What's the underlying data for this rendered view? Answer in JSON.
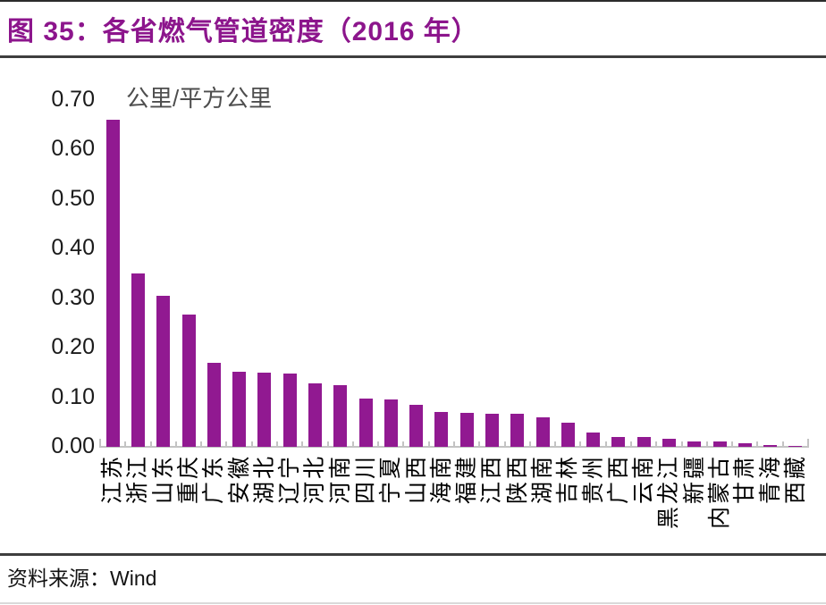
{
  "header": {
    "title": "图 35：各省燃气管道密度（2016 年）"
  },
  "footer": {
    "source_label": "资料来源：",
    "source_name": "Wind"
  },
  "colors": {
    "bar": "#911991",
    "title": "#8c158c",
    "axis": "#c3c3c3",
    "unit_label_text": "#4d4d4d",
    "ytick_text": "#1a1a1a",
    "xlabel_text": "#000000",
    "divider": "#3e3e3e"
  },
  "chart_data": {
    "type": "bar",
    "title": "图 35：各省燃气管道密度（2016 年）",
    "unit_label": "公里/平方公里",
    "ylabel": "公里/平方公里",
    "xlabel": "",
    "categories": [
      "江苏",
      "浙江",
      "山东",
      "重庆",
      "广东",
      "安徽",
      "湖北",
      "辽宁",
      "河北",
      "河南",
      "四川",
      "宁夏",
      "山西",
      "海南",
      "福建",
      "江西",
      "陕西",
      "湖南",
      "吉林",
      "贵州",
      "广西",
      "云南",
      "黑龙江",
      "新疆",
      "内蒙古",
      "甘肃",
      "青海",
      "西藏"
    ],
    "values": [
      0.66,
      0.35,
      0.305,
      0.267,
      0.17,
      0.152,
      0.149,
      0.148,
      0.128,
      0.124,
      0.097,
      0.095,
      0.085,
      0.071,
      0.068,
      0.067,
      0.066,
      0.059,
      0.048,
      0.028,
      0.02,
      0.019,
      0.017,
      0.011,
      0.011,
      0.008,
      0.003,
      0.001
    ],
    "ylim": [
      0.0,
      0.7
    ],
    "yticks": [
      0.0,
      0.1,
      0.2,
      0.3,
      0.4,
      0.5,
      0.6,
      0.7
    ],
    "ytick_decimals": 2,
    "grid": false,
    "legend": false,
    "bar_label_rotation": -90,
    "sort_order": "descending"
  }
}
